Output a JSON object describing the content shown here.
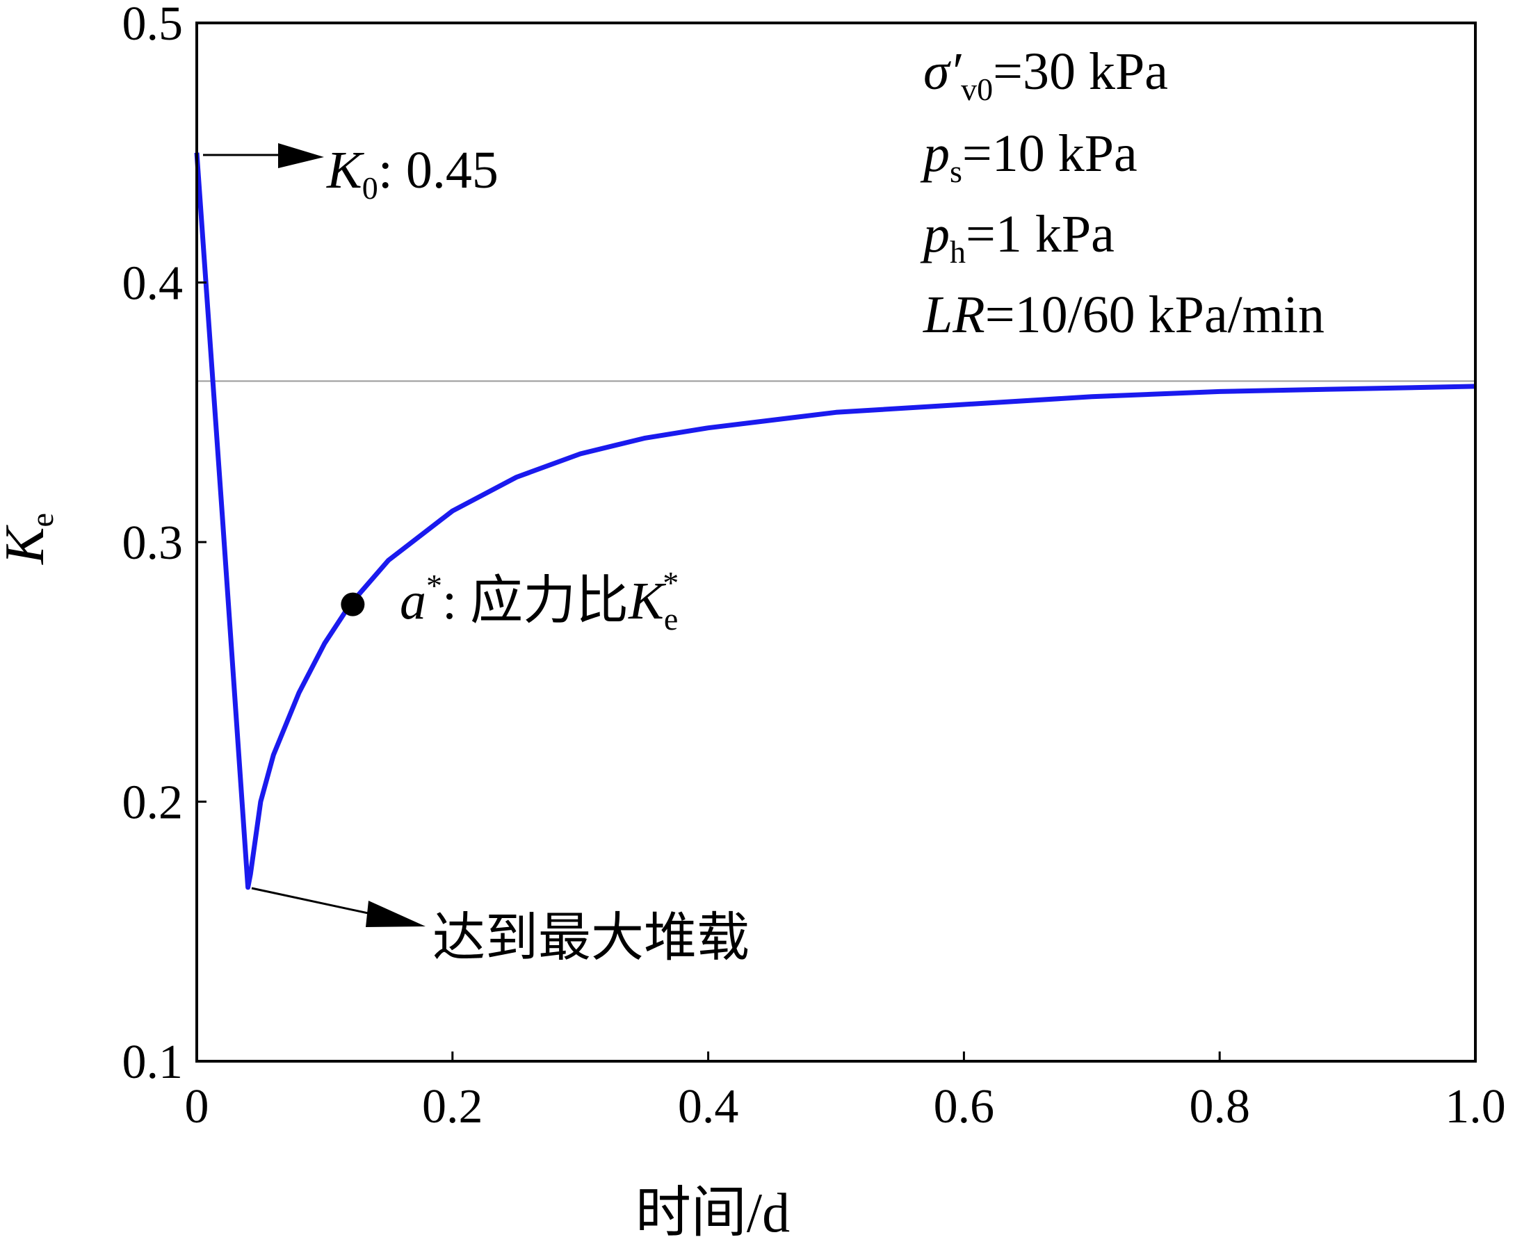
{
  "chart_data": {
    "type": "line",
    "title": "",
    "xlabel": "时间/d",
    "ylabel": {
      "symbol": "K",
      "sub": "e"
    },
    "xlim": [
      0,
      1.0
    ],
    "ylim": [
      0.1,
      0.5
    ],
    "xticks": [
      0,
      0.2,
      0.4,
      0.6,
      0.8,
      1.0
    ],
    "xtick_labels": [
      "0",
      "0.2",
      "0.4",
      "0.6",
      "0.8",
      "1.0"
    ],
    "yticks": [
      0.1,
      0.2,
      0.3,
      0.4,
      0.5
    ],
    "ytick_labels": [
      "0.1",
      "0.2",
      "0.3",
      "0.4",
      "0.5"
    ],
    "grid": false,
    "line_color": "#1a1aee",
    "reference_line": {
      "y": 0.362,
      "color": "#9a9a9a"
    },
    "series": [
      {
        "x": [
          0,
          0.02,
          0.04,
          0.042,
          0.05,
          0.06,
          0.08,
          0.1,
          0.12,
          0.15,
          0.2,
          0.25,
          0.3,
          0.35,
          0.4,
          0.5,
          0.6,
          0.7,
          0.8,
          0.9,
          1.0
        ],
        "y": [
          0.45,
          0.31,
          0.167,
          0.172,
          0.2,
          0.218,
          0.242,
          0.261,
          0.276,
          0.293,
          0.312,
          0.325,
          0.334,
          0.34,
          0.344,
          0.35,
          0.353,
          0.356,
          0.358,
          0.359,
          0.36
        ]
      }
    ],
    "marker": {
      "x": 0.122,
      "y": 0.276
    },
    "annotations": {
      "k0": {
        "symbol": "K",
        "sub": "0",
        "text": ": 0.45"
      },
      "a_star": {
        "symbol": "a",
        "sup": "*",
        "text": ": 应力比",
        "ke": "K",
        "ke_sub": "e",
        "ke_sup": "*"
      },
      "max_load": {
        "text": "达到最大堆载"
      }
    },
    "params": {
      "sigma": {
        "symbol": "σ′",
        "sub": "v0",
        "value": "=30 kPa"
      },
      "ps": {
        "symbol": "p",
        "sub": "s",
        "value": "=10 kPa"
      },
      "ph": {
        "symbol": "p",
        "sub": "h",
        "value": "=1 kPa"
      },
      "lr": {
        "symbol": "LR",
        "value": "=10/60 kPa/min"
      }
    }
  }
}
